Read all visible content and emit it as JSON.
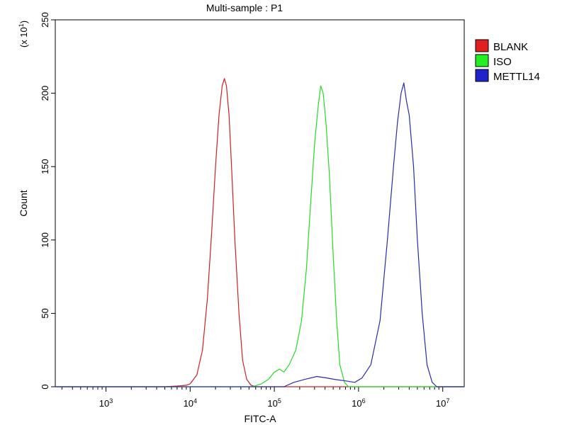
{
  "chart_data": {
    "type": "line",
    "title": "Multi-sample : P1",
    "xlabel": "FITC-A",
    "ylabel": "Count",
    "ylabel_multiplier": "(x 10",
    "ylabel_multiplier_exp": "1",
    "ylabel_multiplier_close": ")",
    "x_scale": "log",
    "xlim": [
      250,
      18000000
    ],
    "ylim": [
      0,
      250
    ],
    "x_ticks": [
      {
        "base": "10",
        "exp": "3",
        "value": 1000
      },
      {
        "base": "10",
        "exp": "4",
        "value": 10000
      },
      {
        "base": "10",
        "exp": "5",
        "value": 100000
      },
      {
        "base": "10",
        "exp": "6",
        "value": 1000000
      },
      {
        "base": "10",
        "exp": "7",
        "value": 10000000
      }
    ],
    "y_ticks": [
      "0",
      "50",
      "100",
      "150",
      "200",
      "250"
    ],
    "grid": false,
    "legend_position": "right",
    "series": [
      {
        "name": "BLANK",
        "color": "#cc2222",
        "points": [
          [
            5000,
            0
          ],
          [
            7000,
            0.5
          ],
          [
            9000,
            1
          ],
          [
            10000,
            2
          ],
          [
            12000,
            8
          ],
          [
            14000,
            25
          ],
          [
            16000,
            60
          ],
          [
            18000,
            105
          ],
          [
            20000,
            150
          ],
          [
            22000,
            185
          ],
          [
            24000,
            205
          ],
          [
            25500,
            210
          ],
          [
            27000,
            205
          ],
          [
            29000,
            185
          ],
          [
            31000,
            150
          ],
          [
            34000,
            100
          ],
          [
            38000,
            50
          ],
          [
            42000,
            18
          ],
          [
            47000,
            5
          ],
          [
            53000,
            1
          ],
          [
            60000,
            0
          ]
        ]
      },
      {
        "name": "ISO",
        "color": "#22dd22",
        "points": [
          [
            55000,
            0
          ],
          [
            70000,
            2
          ],
          [
            85000,
            5
          ],
          [
            100000,
            10
          ],
          [
            115000,
            12
          ],
          [
            130000,
            10
          ],
          [
            150000,
            15
          ],
          [
            180000,
            25
          ],
          [
            210000,
            45
          ],
          [
            240000,
            80
          ],
          [
            270000,
            125
          ],
          [
            300000,
            165
          ],
          [
            330000,
            190
          ],
          [
            355000,
            205
          ],
          [
            380000,
            200
          ],
          [
            410000,
            180
          ],
          [
            450000,
            145
          ],
          [
            500000,
            90
          ],
          [
            550000,
            45
          ],
          [
            600000,
            15
          ],
          [
            680000,
            3
          ],
          [
            760000,
            0
          ]
        ]
      },
      {
        "name": "METTL14",
        "color": "#2b2ba8",
        "points": [
          [
            130000,
            0
          ],
          [
            170000,
            3
          ],
          [
            230000,
            5
          ],
          [
            320000,
            7
          ],
          [
            420000,
            6
          ],
          [
            520000,
            5
          ],
          [
            700000,
            4
          ],
          [
            900000,
            3
          ],
          [
            1100000,
            6
          ],
          [
            1400000,
            15
          ],
          [
            1800000,
            45
          ],
          [
            2200000,
            100
          ],
          [
            2600000,
            150
          ],
          [
            2900000,
            180
          ],
          [
            3200000,
            200
          ],
          [
            3450000,
            207
          ],
          [
            3700000,
            195
          ],
          [
            4000000,
            185
          ],
          [
            4500000,
            150
          ],
          [
            5000000,
            100
          ],
          [
            5700000,
            50
          ],
          [
            6500000,
            15
          ],
          [
            7500000,
            3
          ],
          [
            8500000,
            0
          ]
        ]
      }
    ]
  }
}
